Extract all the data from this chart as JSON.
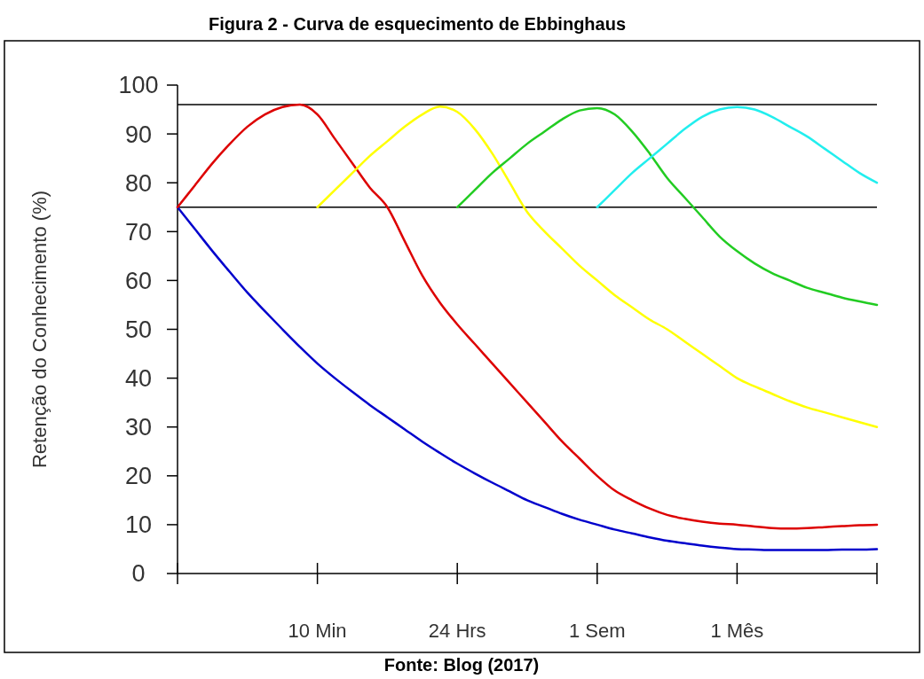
{
  "chart_data": {
    "type": "line",
    "title": "Figura 2 - Curva de esquecimento de Ebbinghaus",
    "ylabel": "Retenção do Conhecimento (%)",
    "annotations": [
      "Fonte: Blog (2017)"
    ],
    "categories": [
      null,
      null,
      null,
      null,
      null,
      null,
      null,
      null,
      "10 Min",
      null,
      null,
      null,
      null,
      null,
      null,
      null,
      "24 Hrs",
      null,
      null,
      null,
      null,
      null,
      null,
      null,
      "1 Sem",
      null,
      null,
      null,
      null,
      null,
      null,
      null,
      "1 Mês",
      null,
      null,
      null,
      null,
      null,
      null,
      null,
      null
    ],
    "ylim": [
      0,
      100
    ],
    "yticks": [
      0,
      10,
      20,
      30,
      40,
      50,
      60,
      70,
      80,
      90,
      100
    ],
    "grid": false,
    "marker": "none",
    "line_style": "solid",
    "ref_lines": [
      {
        "axis": "y",
        "value": 96,
        "label": null,
        "color": "#000000"
      },
      {
        "axis": "y",
        "value": 75,
        "label": null,
        "color": "#000000"
      }
    ],
    "series": [
      {
        "color": "#0000cc",
        "values": [
          75,
          70.5,
          66,
          61.7,
          57.5,
          53.7,
          50,
          46.4,
          43,
          40,
          37.2,
          34.5,
          32,
          29.5,
          27,
          24.7,
          22.5,
          20.5,
          18.6,
          16.8,
          15,
          13.6,
          12.2,
          11,
          10,
          9,
          8.2,
          7.4,
          6.7,
          6.2,
          5.7,
          5.3,
          5,
          4.9,
          4.8,
          4.8,
          4.8,
          4.8,
          4.9,
          4.9,
          5
        ]
      },
      {
        "color": "#dd0000",
        "values": [
          75,
          79.5,
          84,
          88,
          91.5,
          94,
          95.5,
          96,
          94,
          89,
          84,
          79,
          75,
          68,
          61,
          55.5,
          51,
          47,
          43,
          39,
          35,
          31,
          27,
          23.5,
          20,
          17,
          15,
          13.3,
          12,
          11.2,
          10.6,
          10.2,
          10,
          9.6,
          9.3,
          9.2,
          9.3,
          9.5,
          9.7,
          9.9,
          10
        ]
      },
      {
        "color": "#ffff00",
        "values": [
          null,
          null,
          null,
          null,
          null,
          null,
          null,
          null,
          75,
          78.5,
          82,
          85.5,
          88.5,
          91.5,
          94,
          95.6,
          94.5,
          91,
          86,
          80,
          74,
          70,
          66.5,
          63,
          60,
          57,
          54.5,
          52,
          50,
          47.5,
          45,
          42.5,
          40,
          38.3,
          36.8,
          35.3,
          34,
          33,
          32,
          31,
          30
        ]
      },
      {
        "color": "#22cc22",
        "values": [
          null,
          null,
          null,
          null,
          null,
          null,
          null,
          null,
          null,
          null,
          null,
          null,
          null,
          null,
          null,
          null,
          75,
          78.5,
          82,
          85,
          88,
          90.5,
          93,
          94.8,
          95.3,
          94,
          90.5,
          86,
          81,
          77,
          73,
          69,
          66,
          63.5,
          61.5,
          60,
          58.5,
          57.5,
          56.5,
          55.7,
          55
        ]
      },
      {
        "color": "#22eeee",
        "values": [
          null,
          null,
          null,
          null,
          null,
          null,
          null,
          null,
          null,
          null,
          null,
          null,
          null,
          null,
          null,
          null,
          null,
          null,
          null,
          null,
          null,
          null,
          null,
          null,
          75,
          78.5,
          82,
          85,
          88,
          91,
          93.5,
          95,
          95.5,
          95,
          93.5,
          91.5,
          89.5,
          87,
          84.5,
          82,
          80
        ]
      }
    ]
  }
}
